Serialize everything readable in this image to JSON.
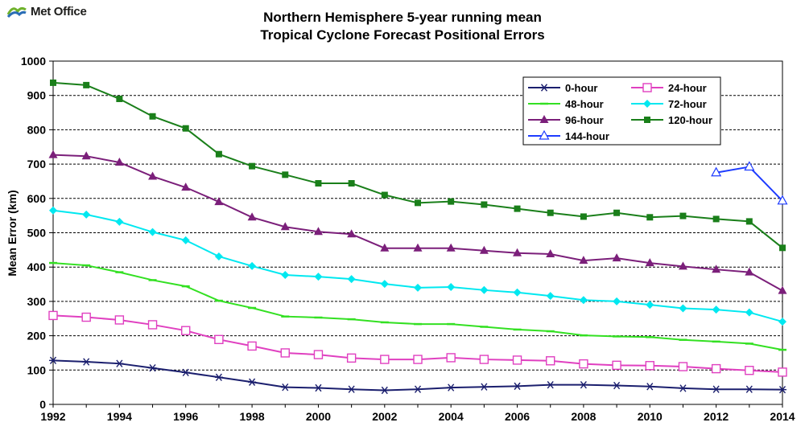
{
  "logo": {
    "text": "Met Office"
  },
  "title": {
    "line1": "Northern Hemisphere 5-year running mean",
    "line2": "Tropical Cyclone Forecast Positional Errors"
  },
  "chart_data": {
    "type": "line",
    "title": "Northern Hemisphere 5-year running mean Tropical Cyclone Forecast Positional Errors",
    "xlabel": "",
    "ylabel": "Mean Error (km)",
    "xlim": [
      1992,
      2014
    ],
    "ylim": [
      0,
      1000
    ],
    "x_ticks": [
      1992,
      1994,
      1996,
      1998,
      2000,
      2002,
      2004,
      2006,
      2008,
      2010,
      2012,
      2014
    ],
    "y_ticks": [
      0,
      100,
      200,
      300,
      400,
      500,
      600,
      700,
      800,
      900,
      1000
    ],
    "grid": "horizontal dashed",
    "legend_position": "top-right",
    "series": [
      {
        "name": "0-hour",
        "color": "#1b1f6e",
        "marker": "asterisk",
        "x": [
          1992,
          1993,
          1994,
          1995,
          1996,
          1997,
          1998,
          1999,
          2000,
          2001,
          2002,
          2003,
          2004,
          2005,
          2006,
          2007,
          2008,
          2009,
          2010,
          2011,
          2012,
          2013,
          2014
        ],
        "values": [
          128,
          124,
          119,
          106,
          93,
          79,
          65,
          50,
          48,
          44,
          41,
          44,
          49,
          51,
          53,
          57,
          57,
          55,
          52,
          47,
          44,
          44,
          43
        ]
      },
      {
        "name": "24-hour",
        "color": "#e040c0",
        "marker": "square-open",
        "x": [
          1992,
          1993,
          1994,
          1995,
          1996,
          1997,
          1998,
          1999,
          2000,
          2001,
          2002,
          2003,
          2004,
          2005,
          2006,
          2007,
          2008,
          2009,
          2010,
          2011,
          2012,
          2013,
          2014
        ],
        "values": [
          259,
          254,
          246,
          232,
          215,
          189,
          170,
          150,
          145,
          135,
          131,
          131,
          136,
          131,
          129,
          127,
          118,
          114,
          113,
          110,
          104,
          99,
          94
        ]
      },
      {
        "name": "48-hour",
        "color": "#33e022",
        "marker": "dash",
        "x": [
          1992,
          1993,
          1994,
          1995,
          1996,
          1997,
          1998,
          1999,
          2000,
          2001,
          2002,
          2003,
          2004,
          2005,
          2006,
          2007,
          2008,
          2009,
          2010,
          2011,
          2012,
          2013,
          2014
        ],
        "values": [
          412,
          405,
          385,
          362,
          344,
          302,
          281,
          256,
          253,
          248,
          239,
          234,
          234,
          226,
          218,
          213,
          201,
          198,
          196,
          188,
          183,
          177,
          159
        ]
      },
      {
        "name": "72-hour",
        "color": "#00e8f0",
        "marker": "diamond",
        "x": [
          1992,
          1993,
          1994,
          1995,
          1996,
          1997,
          1998,
          1999,
          2000,
          2001,
          2002,
          2003,
          2004,
          2005,
          2006,
          2007,
          2008,
          2009,
          2010,
          2011,
          2012,
          2013,
          2014
        ],
        "values": [
          565,
          553,
          532,
          502,
          478,
          431,
          403,
          377,
          372,
          365,
          351,
          340,
          342,
          333,
          326,
          316,
          304,
          300,
          290,
          280,
          276,
          268,
          241
        ]
      },
      {
        "name": "96-hour",
        "color": "#7b1f7a",
        "marker": "triangle",
        "x": [
          1992,
          1993,
          1994,
          1995,
          1996,
          1997,
          1998,
          1999,
          2000,
          2001,
          2002,
          2003,
          2004,
          2005,
          2006,
          2007,
          2008,
          2009,
          2010,
          2011,
          2012,
          2013,
          2014
        ],
        "values": [
          727,
          723,
          705,
          664,
          632,
          590,
          545,
          517,
          503,
          496,
          455,
          455,
          455,
          448,
          441,
          438,
          419,
          426,
          412,
          402,
          393,
          385,
          331
        ]
      },
      {
        "name": "120-hour",
        "color": "#1a7f1a",
        "marker": "square",
        "x": [
          1992,
          1993,
          1994,
          1995,
          1996,
          1997,
          1998,
          1999,
          2000,
          2001,
          2002,
          2003,
          2004,
          2005,
          2006,
          2007,
          2008,
          2009,
          2010,
          2011,
          2012,
          2013,
          2014
        ],
        "values": [
          937,
          930,
          890,
          839,
          804,
          729,
          694,
          669,
          644,
          644,
          610,
          587,
          591,
          582,
          570,
          558,
          547,
          558,
          545,
          549,
          540,
          533,
          456
        ]
      },
      {
        "name": "144-hour",
        "color": "#1e3cff",
        "marker": "triangle-open",
        "x": [
          2012,
          2013,
          2014
        ],
        "values": [
          675,
          692,
          593
        ]
      }
    ]
  }
}
